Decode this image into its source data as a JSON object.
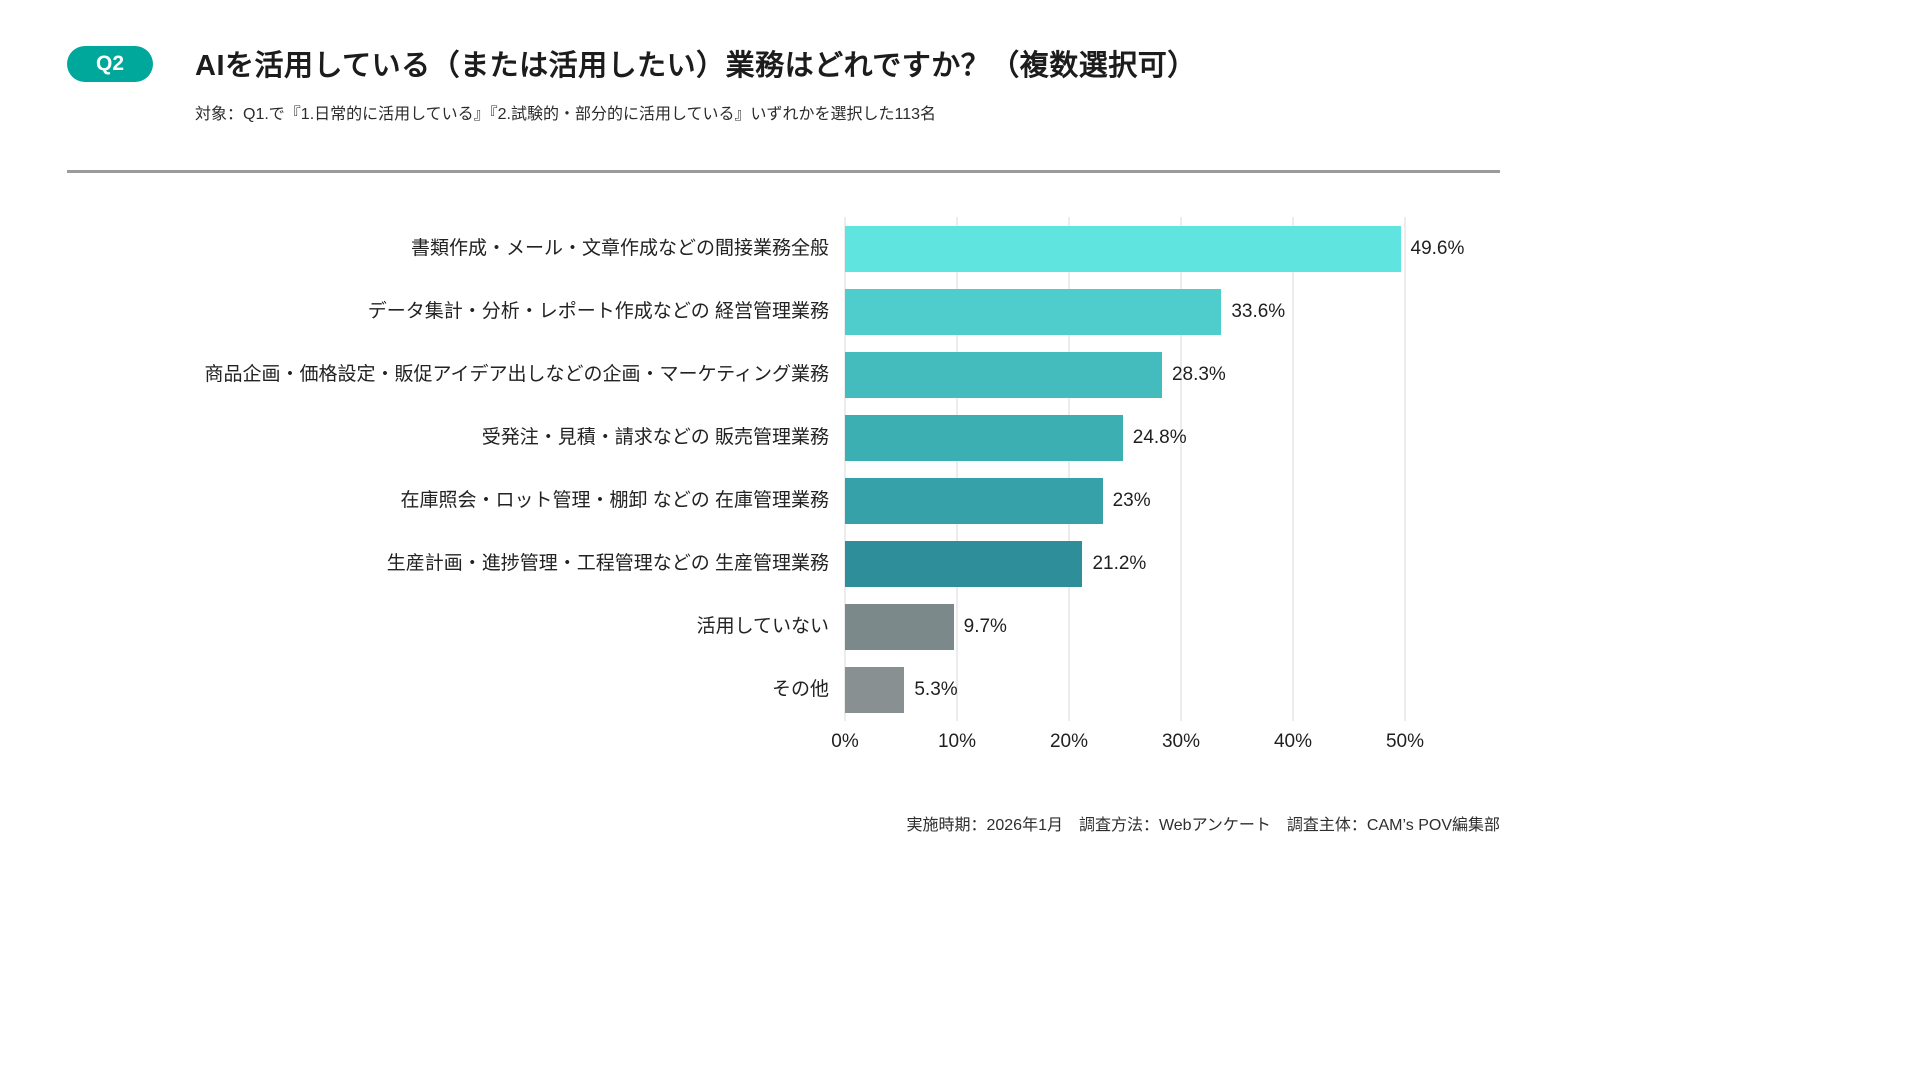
{
  "header": {
    "badge": "Q2",
    "title": "AIを活用している（または活用したい）業務はどれですか？（複数選択可）",
    "subtitle": "対象：Q1.で『1.日常的に活用している』『2.試験的・部分的に活用している』いずれかを選択した113名"
  },
  "footer": {
    "note": "実施時期：2026年1月　調査方法：Webアンケート　調査主体：CAM’s POV編集部"
  },
  "colors": {
    "badge": "#00A79B",
    "divider": "#9B9B9B",
    "gridline": "#D9D9D9"
  },
  "chart_data": {
    "type": "bar",
    "orientation": "horizontal",
    "title": "AIを活用している（または活用したい）業務はどれですか？（複数選択可）",
    "categories": [
      "書類作成・メール・文章作成などの間接業務全般",
      "データ集計・分析・レポート作成などの 経営管理業務",
      "商品企画・価格設定・販促アイデア出しなどの企画・マーケティング業務",
      "受発注・見積・請求などの 販売管理業務",
      "在庫照会・ロット管理・棚卸 などの 在庫管理業務",
      "生産計画・進捗管理・工程管理などの 生産管理業務",
      "活用していない",
      "その他"
    ],
    "values": [
      49.6,
      33.6,
      28.3,
      24.8,
      23,
      21.2,
      9.7,
      5.3
    ],
    "value_labels": [
      "49.6%",
      "33.6%",
      "28.3%",
      "24.8%",
      "23%",
      "21.2%",
      "9.7%",
      "5.3%"
    ],
    "bar_colors": [
      "#5FE4E0",
      "#4FCDCD",
      "#44BCBE",
      "#3CAFB3",
      "#36A1A8",
      "#2E8F9A",
      "#7B898A",
      "#889091"
    ],
    "xlabel": "",
    "ylabel": "",
    "xlim": [
      0,
      50
    ],
    "x_ticks": [
      "0%",
      "10%",
      "20%",
      "30%",
      "40%",
      "50%"
    ],
    "grid": true,
    "legend": false
  }
}
